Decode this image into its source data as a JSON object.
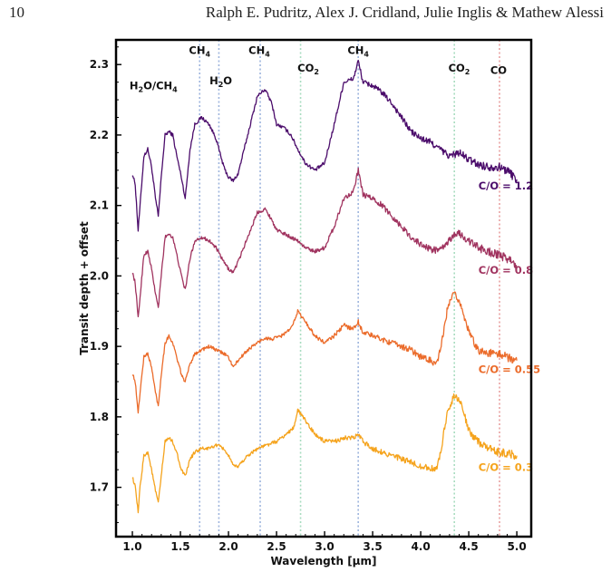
{
  "header": {
    "page_number": "10",
    "authors": "Ralph E. Pudritz, Alex J. Cridland, Julie Inglis & Mathew Alessi"
  },
  "chart_data": {
    "type": "line",
    "xlabel": "Wavelength [μm]",
    "ylabel": "Transit depth + offset",
    "xlim": [
      0.83,
      5.15
    ],
    "ylim": [
      1.63,
      2.335
    ],
    "x_ticks": [
      "1.0",
      "1.5",
      "2.0",
      "2.5",
      "3.0",
      "3.5",
      "4.0",
      "4.5",
      "5.0"
    ],
    "y_ticks": [
      "1.7",
      "1.8",
      "1.9",
      "2.0",
      "2.1",
      "2.2",
      "2.3"
    ],
    "grid": false,
    "legend": "none",
    "feature_lines": [
      {
        "x": 1.7,
        "color": "#9db4dd"
      },
      {
        "x": 1.9,
        "color": "#9db4dd"
      },
      {
        "x": 2.33,
        "color": "#9db4dd"
      },
      {
        "x": 2.75,
        "color": "#a8dcc0"
      },
      {
        "x": 3.35,
        "color": "#9db4dd"
      },
      {
        "x": 4.35,
        "color": "#a8dcc0"
      },
      {
        "x": 4.82,
        "color": "#e8a0a0"
      }
    ],
    "annotations": [
      {
        "main": "H",
        "sub1": "2",
        "mid": "O/CH",
        "sub2": "4",
        "x": 1.22,
        "y": 2.265
      },
      {
        "main": "CH",
        "sub1": "4",
        "x": 1.7,
        "y": 2.315
      },
      {
        "main": "H",
        "sub1": "2",
        "mid": "O",
        "x": 1.92,
        "y": 2.272
      },
      {
        "main": "CH",
        "sub1": "4",
        "x": 2.32,
        "y": 2.315
      },
      {
        "main": "CO",
        "sub1": "2",
        "x": 2.83,
        "y": 2.29
      },
      {
        "main": "CH",
        "sub1": "4",
        "x": 3.35,
        "y": 2.315
      },
      {
        "main": "CO",
        "sub1": "2",
        "x": 4.4,
        "y": 2.29
      },
      {
        "main": "CO",
        "x": 4.81,
        "y": 2.287
      }
    ],
    "series": [
      {
        "name": "C/O = 1.2",
        "color": "#4b0c6b",
        "label_x": 4.6,
        "label_y": 2.123,
        "points": [
          [
            1.0,
            2.145
          ],
          [
            1.03,
            2.13
          ],
          [
            1.06,
            2.065
          ],
          [
            1.08,
            2.1
          ],
          [
            1.12,
            2.17
          ],
          [
            1.16,
            2.18
          ],
          [
            1.2,
            2.155
          ],
          [
            1.24,
            2.11
          ],
          [
            1.27,
            2.085
          ],
          [
            1.3,
            2.14
          ],
          [
            1.34,
            2.2
          ],
          [
            1.38,
            2.205
          ],
          [
            1.42,
            2.2
          ],
          [
            1.47,
            2.165
          ],
          [
            1.51,
            2.14
          ],
          [
            1.55,
            2.11
          ],
          [
            1.6,
            2.18
          ],
          [
            1.65,
            2.215
          ],
          [
            1.72,
            2.225
          ],
          [
            1.8,
            2.215
          ],
          [
            1.87,
            2.195
          ],
          [
            1.95,
            2.155
          ],
          [
            2.0,
            2.14
          ],
          [
            2.05,
            2.135
          ],
          [
            2.1,
            2.145
          ],
          [
            2.2,
            2.2
          ],
          [
            2.3,
            2.255
          ],
          [
            2.38,
            2.265
          ],
          [
            2.45,
            2.245
          ],
          [
            2.5,
            2.215
          ],
          [
            2.58,
            2.21
          ],
          [
            2.65,
            2.2
          ],
          [
            2.72,
            2.18
          ],
          [
            2.8,
            2.16
          ],
          [
            2.9,
            2.15
          ],
          [
            3.0,
            2.16
          ],
          [
            3.1,
            2.215
          ],
          [
            3.2,
            2.275
          ],
          [
            3.3,
            2.28
          ],
          [
            3.35,
            2.305
          ],
          [
            3.4,
            2.275
          ],
          [
            3.5,
            2.27
          ],
          [
            3.6,
            2.26
          ],
          [
            3.7,
            2.245
          ],
          [
            3.8,
            2.225
          ],
          [
            3.9,
            2.205
          ],
          [
            4.0,
            2.195
          ],
          [
            4.1,
            2.19
          ],
          [
            4.2,
            2.18
          ],
          [
            4.3,
            2.17
          ],
          [
            4.4,
            2.175
          ],
          [
            4.5,
            2.165
          ],
          [
            4.6,
            2.158
          ],
          [
            4.7,
            2.155
          ],
          [
            4.8,
            2.155
          ],
          [
            4.9,
            2.15
          ],
          [
            5.0,
            2.137
          ]
        ]
      },
      {
        "name": "C/O = 0.8",
        "color": "#a0335f",
        "label_x": 4.6,
        "label_y": 2.003,
        "points": [
          [
            1.0,
            2.005
          ],
          [
            1.03,
            1.99
          ],
          [
            1.06,
            1.94
          ],
          [
            1.08,
            1.97
          ],
          [
            1.12,
            2.03
          ],
          [
            1.16,
            2.035
          ],
          [
            1.2,
            2.01
          ],
          [
            1.24,
            1.975
          ],
          [
            1.27,
            1.955
          ],
          [
            1.3,
            2.0
          ],
          [
            1.34,
            2.055
          ],
          [
            1.38,
            2.06
          ],
          [
            1.42,
            2.055
          ],
          [
            1.47,
            2.025
          ],
          [
            1.51,
            2.0
          ],
          [
            1.55,
            1.98
          ],
          [
            1.6,
            2.025
          ],
          [
            1.65,
            2.05
          ],
          [
            1.72,
            2.055
          ],
          [
            1.8,
            2.05
          ],
          [
            1.87,
            2.04
          ],
          [
            1.95,
            2.02
          ],
          [
            2.0,
            2.01
          ],
          [
            2.05,
            2.005
          ],
          [
            2.1,
            2.02
          ],
          [
            2.2,
            2.055
          ],
          [
            2.3,
            2.09
          ],
          [
            2.38,
            2.095
          ],
          [
            2.45,
            2.08
          ],
          [
            2.5,
            2.065
          ],
          [
            2.58,
            2.06
          ],
          [
            2.65,
            2.055
          ],
          [
            2.72,
            2.05
          ],
          [
            2.8,
            2.04
          ],
          [
            2.9,
            2.035
          ],
          [
            3.0,
            2.04
          ],
          [
            3.1,
            2.07
          ],
          [
            3.2,
            2.11
          ],
          [
            3.3,
            2.12
          ],
          [
            3.35,
            2.15
          ],
          [
            3.4,
            2.115
          ],
          [
            3.5,
            2.11
          ],
          [
            3.6,
            2.1
          ],
          [
            3.7,
            2.085
          ],
          [
            3.8,
            2.07
          ],
          [
            3.9,
            2.055
          ],
          [
            4.0,
            2.045
          ],
          [
            4.1,
            2.038
          ],
          [
            4.2,
            2.036
          ],
          [
            4.3,
            2.05
          ],
          [
            4.35,
            2.06
          ],
          [
            4.4,
            2.06
          ],
          [
            4.5,
            2.05
          ],
          [
            4.6,
            2.04
          ],
          [
            4.7,
            2.035
          ],
          [
            4.8,
            2.03
          ],
          [
            4.9,
            2.025
          ],
          [
            5.0,
            2.015
          ]
        ]
      },
      {
        "name": "C/O = 0.55",
        "color": "#eb6b2a",
        "label_x": 4.6,
        "label_y": 1.862,
        "points": [
          [
            1.0,
            1.862
          ],
          [
            1.03,
            1.85
          ],
          [
            1.06,
            1.805
          ],
          [
            1.08,
            1.835
          ],
          [
            1.12,
            1.885
          ],
          [
            1.16,
            1.89
          ],
          [
            1.2,
            1.87
          ],
          [
            1.24,
            1.835
          ],
          [
            1.27,
            1.815
          ],
          [
            1.3,
            1.86
          ],
          [
            1.34,
            1.905
          ],
          [
            1.38,
            1.915
          ],
          [
            1.42,
            1.905
          ],
          [
            1.47,
            1.88
          ],
          [
            1.51,
            1.86
          ],
          [
            1.55,
            1.85
          ],
          [
            1.6,
            1.875
          ],
          [
            1.65,
            1.89
          ],
          [
            1.72,
            1.895
          ],
          [
            1.8,
            1.9
          ],
          [
            1.87,
            1.895
          ],
          [
            1.95,
            1.89
          ],
          [
            2.0,
            1.885
          ],
          [
            2.05,
            1.87
          ],
          [
            2.1,
            1.88
          ],
          [
            2.2,
            1.895
          ],
          [
            2.3,
            1.905
          ],
          [
            2.38,
            1.912
          ],
          [
            2.45,
            1.91
          ],
          [
            2.55,
            1.915
          ],
          [
            2.65,
            1.925
          ],
          [
            2.72,
            1.95
          ],
          [
            2.8,
            1.935
          ],
          [
            2.9,
            1.915
          ],
          [
            3.0,
            1.905
          ],
          [
            3.1,
            1.915
          ],
          [
            3.2,
            1.93
          ],
          [
            3.3,
            1.925
          ],
          [
            3.35,
            1.935
          ],
          [
            3.4,
            1.92
          ],
          [
            3.5,
            1.915
          ],
          [
            3.6,
            1.91
          ],
          [
            3.7,
            1.905
          ],
          [
            3.8,
            1.9
          ],
          [
            3.9,
            1.895
          ],
          [
            4.0,
            1.885
          ],
          [
            4.1,
            1.88
          ],
          [
            4.17,
            1.875
          ],
          [
            4.22,
            1.905
          ],
          [
            4.28,
            1.955
          ],
          [
            4.35,
            1.975
          ],
          [
            4.4,
            1.965
          ],
          [
            4.45,
            1.945
          ],
          [
            4.5,
            1.92
          ],
          [
            4.6,
            1.895
          ],
          [
            4.7,
            1.89
          ],
          [
            4.8,
            1.89
          ],
          [
            4.9,
            1.885
          ],
          [
            5.0,
            1.88
          ]
        ]
      },
      {
        "name": "C/O = 0.3",
        "color": "#f5a31c",
        "label_x": 4.6,
        "label_y": 1.723,
        "points": [
          [
            1.0,
            1.715
          ],
          [
            1.03,
            1.7
          ],
          [
            1.06,
            1.665
          ],
          [
            1.08,
            1.7
          ],
          [
            1.12,
            1.745
          ],
          [
            1.16,
            1.75
          ],
          [
            1.2,
            1.725
          ],
          [
            1.24,
            1.695
          ],
          [
            1.27,
            1.678
          ],
          [
            1.3,
            1.715
          ],
          [
            1.34,
            1.765
          ],
          [
            1.38,
            1.77
          ],
          [
            1.42,
            1.765
          ],
          [
            1.47,
            1.745
          ],
          [
            1.51,
            1.725
          ],
          [
            1.55,
            1.715
          ],
          [
            1.6,
            1.74
          ],
          [
            1.65,
            1.75
          ],
          [
            1.72,
            1.755
          ],
          [
            1.8,
            1.755
          ],
          [
            1.87,
            1.76
          ],
          [
            1.95,
            1.755
          ],
          [
            2.0,
            1.745
          ],
          [
            2.05,
            1.73
          ],
          [
            2.1,
            1.73
          ],
          [
            2.2,
            1.745
          ],
          [
            2.3,
            1.755
          ],
          [
            2.4,
            1.76
          ],
          [
            2.5,
            1.765
          ],
          [
            2.6,
            1.775
          ],
          [
            2.68,
            1.785
          ],
          [
            2.72,
            1.81
          ],
          [
            2.8,
            1.795
          ],
          [
            2.9,
            1.775
          ],
          [
            3.0,
            1.765
          ],
          [
            3.1,
            1.765
          ],
          [
            3.2,
            1.77
          ],
          [
            3.3,
            1.77
          ],
          [
            3.35,
            1.775
          ],
          [
            3.4,
            1.765
          ],
          [
            3.5,
            1.755
          ],
          [
            3.6,
            1.75
          ],
          [
            3.7,
            1.745
          ],
          [
            3.8,
            1.74
          ],
          [
            3.9,
            1.735
          ],
          [
            4.0,
            1.73
          ],
          [
            4.1,
            1.727
          ],
          [
            4.17,
            1.725
          ],
          [
            4.22,
            1.76
          ],
          [
            4.28,
            1.81
          ],
          [
            4.35,
            1.83
          ],
          [
            4.4,
            1.825
          ],
          [
            4.45,
            1.805
          ],
          [
            4.5,
            1.78
          ],
          [
            4.6,
            1.765
          ],
          [
            4.7,
            1.755
          ],
          [
            4.8,
            1.75
          ],
          [
            4.9,
            1.748
          ],
          [
            5.0,
            1.745
          ]
        ]
      }
    ]
  }
}
